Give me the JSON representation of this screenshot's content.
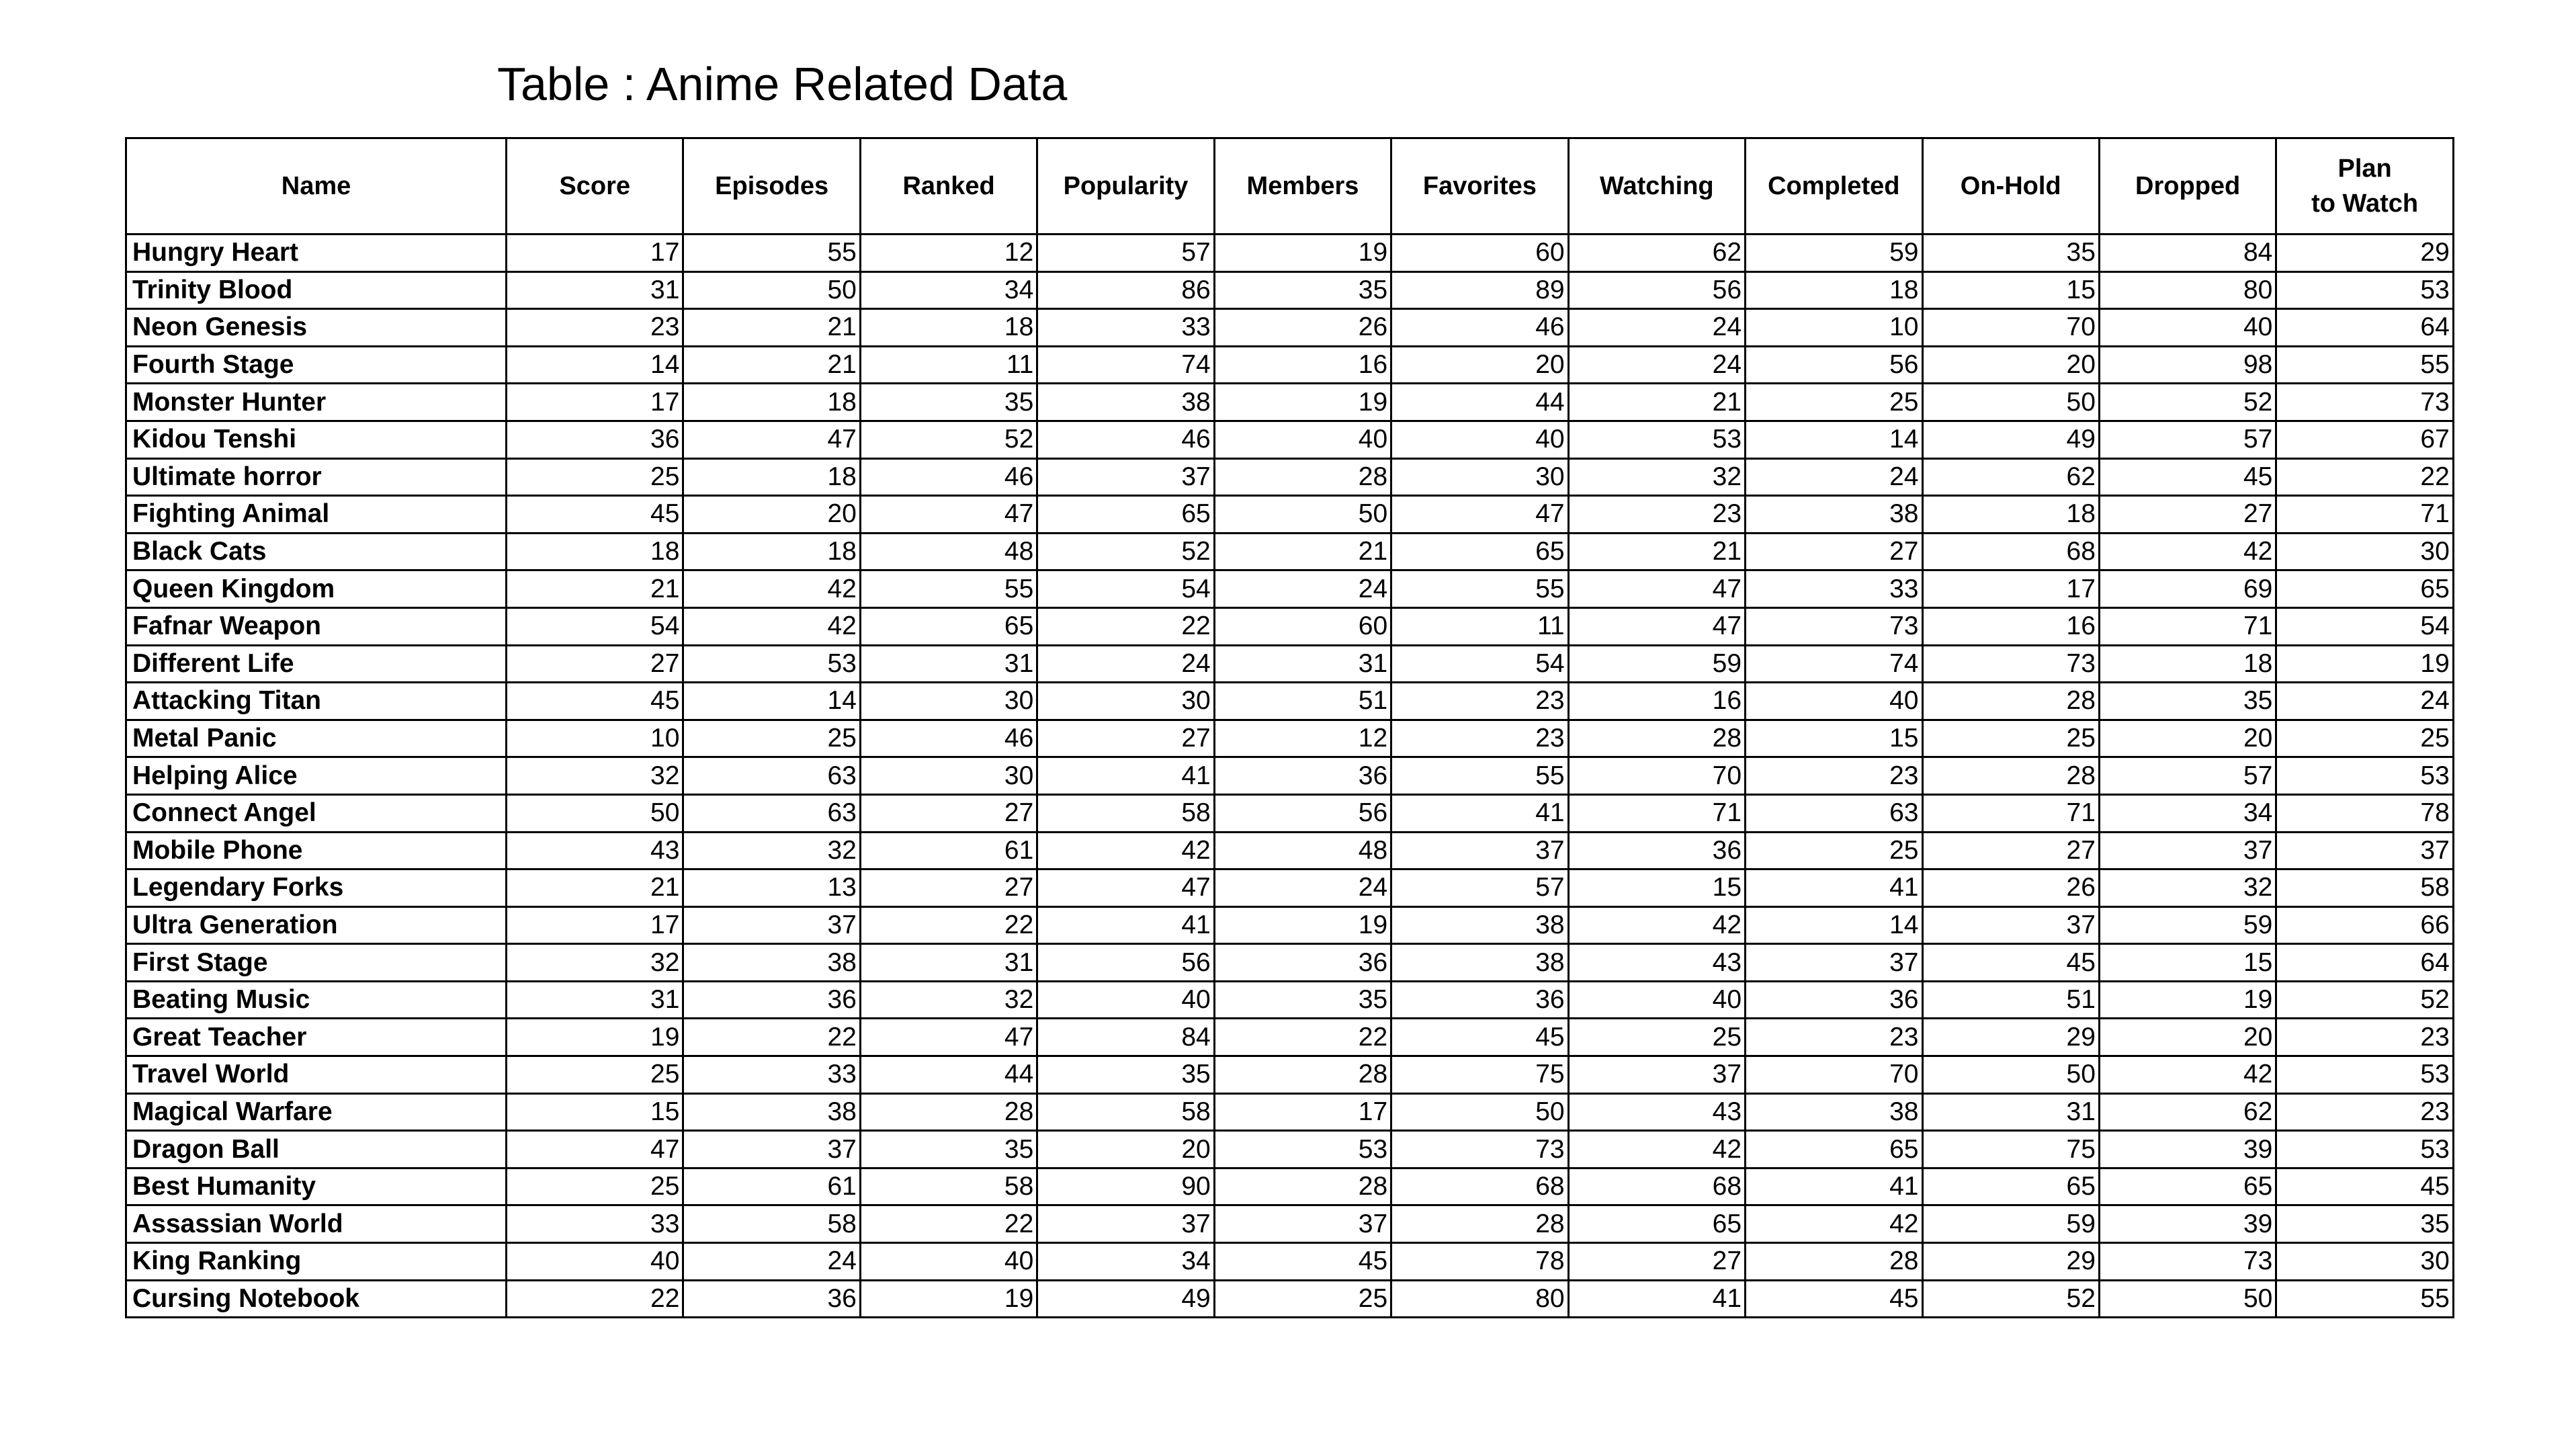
{
  "title": "Table : Anime Related Data",
  "columns": [
    "Name",
    "Score",
    "Episodes",
    "Ranked",
    "Popularity",
    "Members",
    "Favorites",
    "Watching",
    "Completed",
    "On-Hold",
    "Dropped",
    "Plan to Watch"
  ],
  "plan_header_lines": [
    "Plan",
    "to Watch"
  ],
  "rows": [
    {
      "name": "Hungry Heart",
      "values": [
        17,
        55,
        12,
        57,
        19,
        60,
        62,
        59,
        35,
        84,
        29
      ]
    },
    {
      "name": "Trinity Blood",
      "values": [
        31,
        50,
        34,
        86,
        35,
        89,
        56,
        18,
        15,
        80,
        53
      ]
    },
    {
      "name": "Neon Genesis",
      "values": [
        23,
        21,
        18,
        33,
        26,
        46,
        24,
        10,
        70,
        40,
        64
      ]
    },
    {
      "name": "Fourth Stage",
      "values": [
        14,
        21,
        11,
        74,
        16,
        20,
        24,
        56,
        20,
        98,
        55
      ]
    },
    {
      "name": "Monster Hunter",
      "values": [
        17,
        18,
        35,
        38,
        19,
        44,
        21,
        25,
        50,
        52,
        73
      ]
    },
    {
      "name": "Kidou Tenshi",
      "values": [
        36,
        47,
        52,
        46,
        40,
        40,
        53,
        14,
        49,
        57,
        67
      ]
    },
    {
      "name": "Ultimate horror",
      "values": [
        25,
        18,
        46,
        37,
        28,
        30,
        32,
        24,
        62,
        45,
        22
      ]
    },
    {
      "name": "Fighting Animal",
      "values": [
        45,
        20,
        47,
        65,
        50,
        47,
        23,
        38,
        18,
        27,
        71
      ]
    },
    {
      "name": "Black Cats",
      "values": [
        18,
        18,
        48,
        52,
        21,
        65,
        21,
        27,
        68,
        42,
        30
      ]
    },
    {
      "name": "Queen Kingdom",
      "values": [
        21,
        42,
        55,
        54,
        24,
        55,
        47,
        33,
        17,
        69,
        65
      ]
    },
    {
      "name": "Fafnar Weapon",
      "values": [
        54,
        42,
        65,
        22,
        60,
        11,
        47,
        73,
        16,
        71,
        54
      ]
    },
    {
      "name": "Different Life",
      "values": [
        27,
        53,
        31,
        24,
        31,
        54,
        59,
        74,
        73,
        18,
        19
      ]
    },
    {
      "name": "Attacking Titan",
      "values": [
        45,
        14,
        30,
        30,
        51,
        23,
        16,
        40,
        28,
        35,
        24
      ]
    },
    {
      "name": "Metal Panic",
      "values": [
        10,
        25,
        46,
        27,
        12,
        23,
        28,
        15,
        25,
        20,
        25
      ]
    },
    {
      "name": "Helping Alice",
      "values": [
        32,
        63,
        30,
        41,
        36,
        55,
        70,
        23,
        28,
        57,
        53
      ]
    },
    {
      "name": "Connect Angel",
      "values": [
        50,
        63,
        27,
        58,
        56,
        41,
        71,
        63,
        71,
        34,
        78
      ]
    },
    {
      "name": "Mobile Phone",
      "values": [
        43,
        32,
        61,
        42,
        48,
        37,
        36,
        25,
        27,
        37,
        37
      ]
    },
    {
      "name": "Legendary Forks",
      "values": [
        21,
        13,
        27,
        47,
        24,
        57,
        15,
        41,
        26,
        32,
        58
      ]
    },
    {
      "name": "Ultra Generation",
      "values": [
        17,
        37,
        22,
        41,
        19,
        38,
        42,
        14,
        37,
        59,
        66
      ]
    },
    {
      "name": "First Stage",
      "values": [
        32,
        38,
        31,
        56,
        36,
        38,
        43,
        37,
        45,
        15,
        64
      ]
    },
    {
      "name": "Beating Music",
      "values": [
        31,
        36,
        32,
        40,
        35,
        36,
        40,
        36,
        51,
        19,
        52
      ]
    },
    {
      "name": "Great Teacher",
      "values": [
        19,
        22,
        47,
        84,
        22,
        45,
        25,
        23,
        29,
        20,
        23
      ]
    },
    {
      "name": "Travel World",
      "values": [
        25,
        33,
        44,
        35,
        28,
        75,
        37,
        70,
        50,
        42,
        53
      ]
    },
    {
      "name": "Magical Warfare",
      "values": [
        15,
        38,
        28,
        58,
        17,
        50,
        43,
        38,
        31,
        62,
        23
      ]
    },
    {
      "name": "Dragon Ball",
      "values": [
        47,
        37,
        35,
        20,
        53,
        73,
        42,
        65,
        75,
        39,
        53
      ]
    },
    {
      "name": "Best Humanity",
      "values": [
        25,
        61,
        58,
        90,
        28,
        68,
        68,
        41,
        65,
        65,
        45
      ]
    },
    {
      "name": "Assassian World",
      "values": [
        33,
        58,
        22,
        37,
        37,
        28,
        65,
        42,
        59,
        39,
        35
      ]
    },
    {
      "name": "King Ranking",
      "values": [
        40,
        24,
        40,
        34,
        45,
        78,
        27,
        28,
        29,
        73,
        30
      ]
    },
    {
      "name": "Cursing Notebook",
      "values": [
        22,
        36,
        19,
        49,
        25,
        80,
        41,
        45,
        52,
        50,
        55
      ]
    }
  ]
}
